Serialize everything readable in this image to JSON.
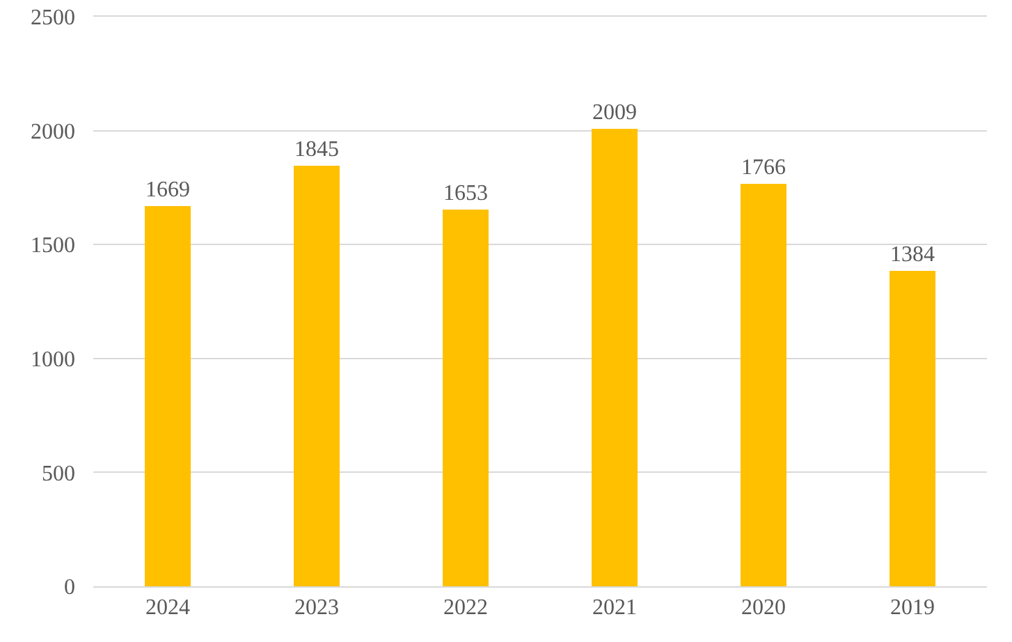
{
  "chart_data": {
    "type": "bar",
    "categories": [
      "2024",
      "2023",
      "2022",
      "2021",
      "2020",
      "2019"
    ],
    "values": [
      1669,
      1845,
      1653,
      2009,
      1766,
      1384
    ],
    "color": "#ffc000",
    "ylim": [
      0,
      2500
    ],
    "yticks": [
      0,
      500,
      1000,
      1500,
      2000,
      2500
    ],
    "grid": "y",
    "data_labels": true
  }
}
